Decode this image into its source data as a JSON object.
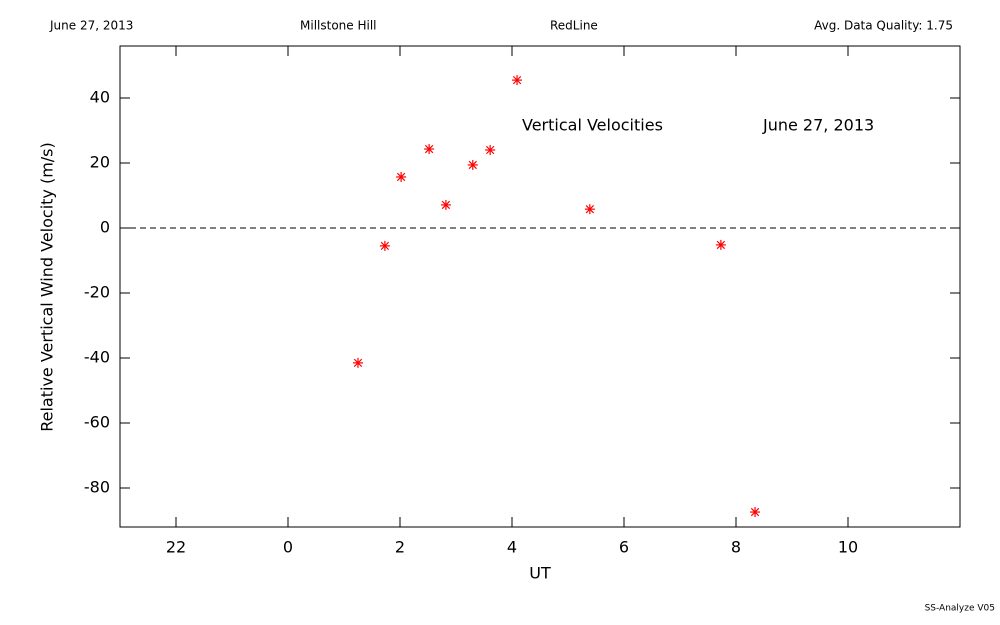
{
  "header": {
    "date": "June 27, 2013",
    "site": "Millstone Hill",
    "instrument": "RedLine",
    "quality": "Avg. Data Quality: 1.75"
  },
  "footer": "SS-Analyze V05",
  "chart_data": {
    "type": "scatter",
    "xlabel": "UT",
    "ylabel": "Relative Vertical Wind Velocity (m/s)",
    "annotations": [
      "Vertical Velocities",
      "June 27, 2013"
    ],
    "x": [
      1.25,
      1.73,
      2.02,
      2.52,
      2.82,
      3.3,
      3.61,
      4.09,
      5.39,
      7.73,
      8.34
    ],
    "values": [
      -41.5,
      -5.5,
      15.7,
      24.3,
      7.1,
      19.4,
      24.0,
      45.5,
      5.8,
      -5.2,
      -87.4
    ],
    "color": "#ff0000",
    "xlim": [
      -3,
      12
    ],
    "xticks": [
      {
        "value": -2,
        "label": "22"
      },
      0,
      2,
      4,
      6,
      8,
      10
    ],
    "ylim": [
      -92,
      56
    ],
    "yticks": [
      -80,
      -60,
      -40,
      -20,
      0,
      20,
      40
    ],
    "reference_line": 0
  }
}
